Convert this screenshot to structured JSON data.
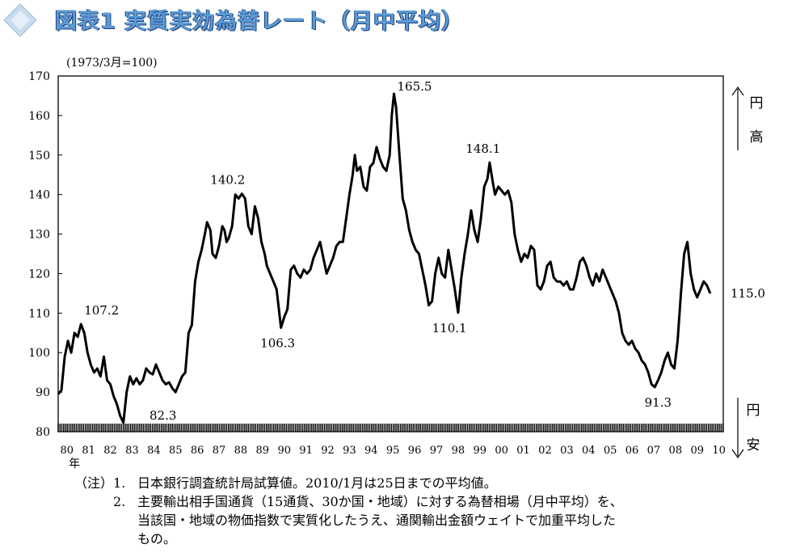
{
  "header": {
    "title": "図表1 実質実効為替レート（月中平均）"
  },
  "chart_data": {
    "type": "line",
    "unit_note": "(1973/3月=100)",
    "ylim": [
      80,
      170
    ],
    "yticks": [
      80,
      90,
      100,
      110,
      120,
      130,
      140,
      150,
      160,
      170
    ],
    "x_ticks": [
      "80",
      "81",
      "82",
      "83",
      "84",
      "85",
      "86",
      "87",
      "88",
      "89",
      "90",
      "91",
      "92",
      "93",
      "94",
      "95",
      "96",
      "97",
      "98",
      "99",
      "00",
      "01",
      "02",
      "03",
      "04",
      "05",
      "06",
      "07",
      "08",
      "09",
      "10"
    ],
    "x_unit": "年",
    "right_label_top": [
      "円",
      "高"
    ],
    "right_label_bottom": [
      "円",
      "安"
    ],
    "end_label": "115.0",
    "annotations": [
      {
        "x": 1980.9,
        "y": 107.2,
        "label": "107.2"
      },
      {
        "x": 1982.9,
        "y": 82.3,
        "label": "82.3"
      },
      {
        "x": 1987.8,
        "y": 140.2,
        "label": "140.2"
      },
      {
        "x": 1990.1,
        "y": 106.3,
        "label": "106.3"
      },
      {
        "x": 1995.3,
        "y": 165.5,
        "label": "165.5"
      },
      {
        "x": 1998.0,
        "y": 110.1,
        "label": "110.1"
      },
      {
        "x": 1998.9,
        "y": 148.1,
        "label": "148.1"
      },
      {
        "x": 2007.6,
        "y": 91.3,
        "label": "91.3"
      }
    ],
    "series": [
      {
        "points": [
          [
            1980.0,
            89.5
          ],
          [
            1980.15,
            90.5
          ],
          [
            1980.3,
            99
          ],
          [
            1980.45,
            103
          ],
          [
            1980.6,
            100
          ],
          [
            1980.75,
            105
          ],
          [
            1980.9,
            104
          ],
          [
            1981.05,
            107.2
          ],
          [
            1981.2,
            105
          ],
          [
            1981.35,
            100
          ],
          [
            1981.5,
            97
          ],
          [
            1981.65,
            95
          ],
          [
            1981.8,
            96
          ],
          [
            1981.95,
            94
          ],
          [
            1982.1,
            99
          ],
          [
            1982.25,
            93
          ],
          [
            1982.4,
            92
          ],
          [
            1982.55,
            89
          ],
          [
            1982.7,
            87
          ],
          [
            1982.85,
            84
          ],
          [
            1983.0,
            82.3
          ],
          [
            1983.15,
            90
          ],
          [
            1983.3,
            94
          ],
          [
            1983.45,
            92
          ],
          [
            1983.6,
            93.5
          ],
          [
            1983.75,
            92
          ],
          [
            1983.9,
            93
          ],
          [
            1984.05,
            96
          ],
          [
            1984.2,
            95
          ],
          [
            1984.35,
            94.5
          ],
          [
            1984.5,
            97
          ],
          [
            1984.65,
            95
          ],
          [
            1984.8,
            93
          ],
          [
            1984.95,
            92
          ],
          [
            1985.1,
            92.5
          ],
          [
            1985.25,
            91
          ],
          [
            1985.4,
            90
          ],
          [
            1985.55,
            92
          ],
          [
            1985.7,
            94
          ],
          [
            1985.85,
            95
          ],
          [
            1986.0,
            105
          ],
          [
            1986.15,
            107
          ],
          [
            1986.3,
            118
          ],
          [
            1986.45,
            123
          ],
          [
            1986.6,
            126
          ],
          [
            1986.75,
            130
          ],
          [
            1986.85,
            133
          ],
          [
            1987.0,
            131
          ],
          [
            1987.1,
            125
          ],
          [
            1987.25,
            124
          ],
          [
            1987.4,
            127
          ],
          [
            1987.55,
            132
          ],
          [
            1987.65,
            131
          ],
          [
            1987.75,
            128
          ],
          [
            1987.85,
            129
          ],
          [
            1988.0,
            132
          ],
          [
            1988.15,
            140
          ],
          [
            1988.3,
            139
          ],
          [
            1988.45,
            140.2
          ],
          [
            1988.6,
            139
          ],
          [
            1988.75,
            132
          ],
          [
            1988.9,
            130
          ],
          [
            1989.05,
            137
          ],
          [
            1989.2,
            134
          ],
          [
            1989.35,
            128
          ],
          [
            1989.5,
            125
          ],
          [
            1989.6,
            122
          ],
          [
            1989.75,
            120
          ],
          [
            1989.9,
            118
          ],
          [
            1990.05,
            116
          ],
          [
            1990.25,
            106.3
          ],
          [
            1990.4,
            109
          ],
          [
            1990.55,
            111
          ],
          [
            1990.7,
            121
          ],
          [
            1990.85,
            122
          ],
          [
            1991.0,
            120
          ],
          [
            1991.15,
            119
          ],
          [
            1991.3,
            121
          ],
          [
            1991.45,
            120
          ],
          [
            1991.6,
            121
          ],
          [
            1991.75,
            124
          ],
          [
            1991.9,
            126
          ],
          [
            1992.05,
            128
          ],
          [
            1992.2,
            124
          ],
          [
            1992.35,
            120
          ],
          [
            1992.5,
            122
          ],
          [
            1992.65,
            124
          ],
          [
            1992.8,
            127
          ],
          [
            1992.95,
            128
          ],
          [
            1993.1,
            128
          ],
          [
            1993.25,
            134
          ],
          [
            1993.4,
            140
          ],
          [
            1993.55,
            145
          ],
          [
            1993.65,
            150
          ],
          [
            1993.75,
            146
          ],
          [
            1993.9,
            147
          ],
          [
            1994.05,
            142
          ],
          [
            1994.2,
            141
          ],
          [
            1994.35,
            147
          ],
          [
            1994.5,
            148
          ],
          [
            1994.65,
            152
          ],
          [
            1994.8,
            149
          ],
          [
            1994.95,
            147
          ],
          [
            1995.1,
            146
          ],
          [
            1995.25,
            150
          ],
          [
            1995.35,
            160
          ],
          [
            1995.45,
            165.5
          ],
          [
            1995.55,
            162
          ],
          [
            1995.7,
            150
          ],
          [
            1995.85,
            139
          ],
          [
            1996.0,
            136
          ],
          [
            1996.15,
            131
          ],
          [
            1996.3,
            128
          ],
          [
            1996.45,
            126
          ],
          [
            1996.6,
            125
          ],
          [
            1996.75,
            121
          ],
          [
            1996.9,
            117
          ],
          [
            1997.05,
            112
          ],
          [
            1997.2,
            113
          ],
          [
            1997.35,
            120
          ],
          [
            1997.5,
            124
          ],
          [
            1997.65,
            120
          ],
          [
            1997.8,
            119
          ],
          [
            1997.95,
            126
          ],
          [
            1998.1,
            121
          ],
          [
            1998.25,
            116
          ],
          [
            1998.4,
            110.1
          ],
          [
            1998.55,
            119
          ],
          [
            1998.7,
            125
          ],
          [
            1998.85,
            130
          ],
          [
            1999.0,
            136
          ],
          [
            1999.15,
            131
          ],
          [
            1999.3,
            128
          ],
          [
            1999.45,
            134
          ],
          [
            1999.6,
            142
          ],
          [
            1999.75,
            144
          ],
          [
            1999.85,
            148.1
          ],
          [
            2000.0,
            143
          ],
          [
            2000.1,
            140
          ],
          [
            2000.25,
            142
          ],
          [
            2000.4,
            141
          ],
          [
            2000.55,
            140
          ],
          [
            2000.7,
            141
          ],
          [
            2000.85,
            138
          ],
          [
            2001.0,
            130
          ],
          [
            2001.15,
            126
          ],
          [
            2001.3,
            123
          ],
          [
            2001.45,
            125
          ],
          [
            2001.6,
            124
          ],
          [
            2001.75,
            127
          ],
          [
            2001.9,
            126
          ],
          [
            2002.05,
            117
          ],
          [
            2002.2,
            116
          ],
          [
            2002.35,
            118
          ],
          [
            2002.5,
            122
          ],
          [
            2002.65,
            123
          ],
          [
            2002.8,
            119
          ],
          [
            2002.95,
            118
          ],
          [
            2003.1,
            118
          ],
          [
            2003.25,
            117
          ],
          [
            2003.4,
            118
          ],
          [
            2003.55,
            116
          ],
          [
            2003.7,
            116
          ],
          [
            2003.85,
            119
          ],
          [
            2004.0,
            123
          ],
          [
            2004.15,
            124
          ],
          [
            2004.3,
            122
          ],
          [
            2004.45,
            119
          ],
          [
            2004.6,
            117
          ],
          [
            2004.75,
            120
          ],
          [
            2004.9,
            118
          ],
          [
            2005.05,
            121
          ],
          [
            2005.2,
            119
          ],
          [
            2005.35,
            117
          ],
          [
            2005.5,
            115
          ],
          [
            2005.65,
            113
          ],
          [
            2005.8,
            110
          ],
          [
            2005.95,
            105
          ],
          [
            2006.1,
            103
          ],
          [
            2006.25,
            102
          ],
          [
            2006.4,
            103
          ],
          [
            2006.55,
            101
          ],
          [
            2006.7,
            100
          ],
          [
            2006.85,
            98
          ],
          [
            2007.0,
            97
          ],
          [
            2007.15,
            95
          ],
          [
            2007.3,
            92
          ],
          [
            2007.45,
            91.3
          ],
          [
            2007.6,
            93
          ],
          [
            2007.75,
            95
          ],
          [
            2007.9,
            98
          ],
          [
            2008.05,
            100
          ],
          [
            2008.2,
            97
          ],
          [
            2008.35,
            96
          ],
          [
            2008.5,
            103
          ],
          [
            2008.65,
            115
          ],
          [
            2008.8,
            125
          ],
          [
            2008.95,
            128
          ],
          [
            2009.1,
            120
          ],
          [
            2009.25,
            116
          ],
          [
            2009.4,
            114
          ],
          [
            2009.55,
            116
          ],
          [
            2009.7,
            118
          ],
          [
            2009.85,
            117
          ],
          [
            2010.0,
            115.0
          ]
        ]
      }
    ]
  },
  "notes": {
    "prefix": "（注）",
    "n1": "1.",
    "n1_text": "日本銀行調査統計局試算値。2010/1月は25日までの平均値。",
    "n2": "2.",
    "n2_line1": "主要輸出相手国通貨（15通貨、30か国・地域）に対する為替相場（月中平均）を、",
    "n2_line2": "当該国・地域の物価指数で実質化したうえ、通関輸出金額ウェイトで加重平均した",
    "n2_line3": "もの。"
  }
}
